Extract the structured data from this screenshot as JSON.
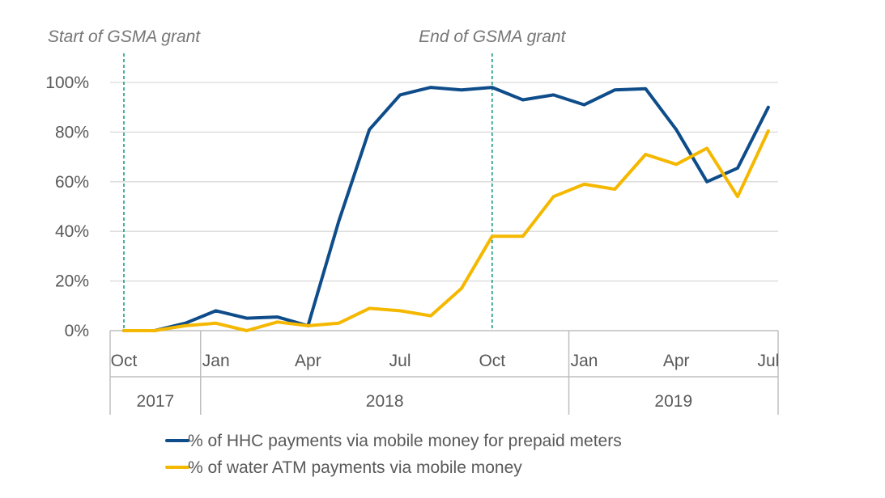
{
  "chart_data": {
    "type": "line",
    "categories": [
      "Oct",
      "Nov",
      "Dec",
      "Jan",
      "Feb",
      "Mar",
      "Apr",
      "May",
      "Jun",
      "Jul",
      "Aug",
      "Sep",
      "Oct",
      "Nov",
      "Dec",
      "Jan",
      "Feb",
      "Mar",
      "Apr",
      "May",
      "Jun",
      "Jul"
    ],
    "month_tick_labels": [
      {
        "index": 0,
        "label": "Oct"
      },
      {
        "index": 3,
        "label": "Jan"
      },
      {
        "index": 6,
        "label": "Apr"
      },
      {
        "index": 9,
        "label": "Jul"
      },
      {
        "index": 12,
        "label": "Oct"
      },
      {
        "index": 15,
        "label": "Jan"
      },
      {
        "index": 18,
        "label": "Apr"
      },
      {
        "index": 21,
        "label": "Jul"
      }
    ],
    "year_groups": [
      {
        "label": "2017",
        "start": 0,
        "end": 2
      },
      {
        "label": "2018",
        "start": 3,
        "end": 14
      },
      {
        "label": "2019",
        "start": 15,
        "end": 21
      }
    ],
    "series": [
      {
        "name": "% of HHC payments via mobile money for prepaid meters",
        "color": "#0E4C8A",
        "values": [
          0,
          0,
          3,
          8,
          5,
          5.5,
          2,
          44,
          81,
          95,
          98,
          97,
          98,
          93,
          95,
          91,
          97,
          97.5,
          81,
          60,
          65.5,
          90
        ]
      },
      {
        "name": "% of water ATM payments via mobile money",
        "color": "#F5B800",
        "values": [
          0,
          0,
          2,
          3,
          0,
          3.5,
          2,
          3,
          9,
          8,
          6,
          17,
          38,
          38,
          54,
          59,
          57,
          71,
          67,
          73.5,
          54,
          80.5
        ]
      }
    ],
    "ylim": [
      0,
      100
    ],
    "yticks": [
      {
        "value": 0,
        "label": "0%"
      },
      {
        "value": 20,
        "label": "20%"
      },
      {
        "value": 40,
        "label": "40%"
      },
      {
        "value": 60,
        "label": "60%"
      },
      {
        "value": 80,
        "label": "80%"
      },
      {
        "value": 100,
        "label": "100%"
      }
    ],
    "annotations": [
      {
        "text": "Start of GSMA grant",
        "at_index": 0
      },
      {
        "text": "End of GSMA grant",
        "at_index": 12
      }
    ],
    "annotation_line_color": "#1A9E7E",
    "gridline_color": "#D9D9D9",
    "grid": true,
    "legend_position": "bottom"
  }
}
